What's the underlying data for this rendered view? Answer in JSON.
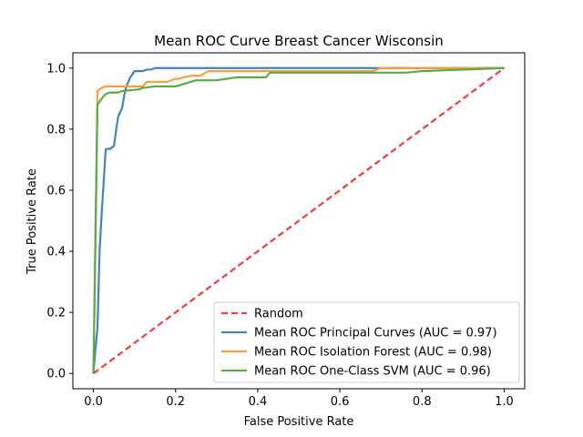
{
  "chart_data": {
    "type": "line",
    "title": "Mean ROC Curve Breast Cancer Wisconsin",
    "xlabel": "False Positive Rate",
    "ylabel": "True Positive Rate",
    "xlim": [
      -0.05,
      1.05
    ],
    "ylim": [
      -0.05,
      1.05
    ],
    "xticks": [
      "0.0",
      "0.2",
      "0.4",
      "0.6",
      "0.8",
      "1.0"
    ],
    "yticks": [
      "0.0",
      "0.2",
      "0.4",
      "0.6",
      "0.8",
      "1.0"
    ],
    "grid": false,
    "legend_position": "bottom-right",
    "series": [
      {
        "name": "Random",
        "color": "#f03c3c",
        "dash": true,
        "x": [
          0,
          1
        ],
        "y": [
          0,
          1
        ]
      },
      {
        "name": "Mean ROC Principal Curves (AUC = 0.97)",
        "color": "#4682b4",
        "dash": false,
        "x": [
          0,
          0.005,
          0.01,
          0.015,
          0.02,
          0.03,
          0.04,
          0.05,
          0.06,
          0.07,
          0.075,
          0.08,
          0.09,
          0.1,
          0.12,
          0.13,
          0.14,
          0.15,
          0.3,
          0.5,
          0.68,
          1.0
        ],
        "y": [
          0,
          0.08,
          0.15,
          0.4,
          0.52,
          0.735,
          0.735,
          0.745,
          0.84,
          0.87,
          0.91,
          0.94,
          0.97,
          0.99,
          0.99,
          0.995,
          0.995,
          1.0,
          1.0,
          1.0,
          1.0,
          1.0
        ]
      },
      {
        "name": "Mean ROC Isolation Forest (AUC = 0.98)",
        "color": "#f5a040",
        "dash": false,
        "x": [
          0,
          0.005,
          0.01,
          0.02,
          0.03,
          0.06,
          0.1,
          0.12,
          0.13,
          0.18,
          0.2,
          0.21,
          0.22,
          0.24,
          0.26,
          0.28,
          0.29,
          0.45,
          0.68,
          0.7,
          1.0
        ],
        "y": [
          0,
          0.45,
          0.925,
          0.935,
          0.94,
          0.94,
          0.94,
          0.94,
          0.955,
          0.955,
          0.965,
          0.965,
          0.97,
          0.975,
          0.975,
          0.99,
          0.99,
          0.99,
          0.99,
          1.0,
          1.0
        ]
      },
      {
        "name": "Mean ROC One-Class SVM (AUC = 0.96)",
        "color": "#5aaa4a",
        "dash": false,
        "x": [
          0,
          0.005,
          0.01,
          0.02,
          0.03,
          0.04,
          0.06,
          0.07,
          0.11,
          0.12,
          0.15,
          0.2,
          0.25,
          0.3,
          0.35,
          0.42,
          0.43,
          0.5,
          0.6,
          0.76,
          0.8,
          1.0
        ],
        "y": [
          0,
          0.45,
          0.88,
          0.9,
          0.915,
          0.92,
          0.92,
          0.925,
          0.93,
          0.935,
          0.94,
          0.94,
          0.96,
          0.96,
          0.97,
          0.97,
          0.985,
          0.985,
          0.985,
          0.985,
          0.99,
          1.0
        ]
      }
    ]
  }
}
